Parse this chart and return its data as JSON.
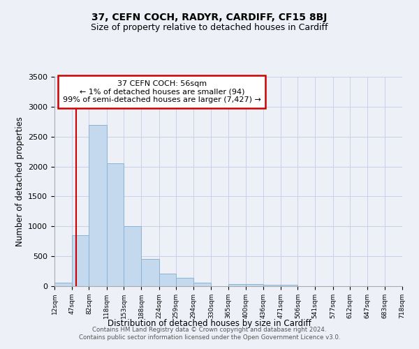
{
  "title": "37, CEFN COCH, RADYR, CARDIFF, CF15 8BJ",
  "subtitle": "Size of property relative to detached houses in Cardiff",
  "xlabel": "Distribution of detached houses by size in Cardiff",
  "ylabel": "Number of detached properties",
  "bar_color": "#c5d9ee",
  "bar_edge_color": "#8ab4d4",
  "annotation_box_color": "#ffffff",
  "annotation_box_edge": "#cc0000",
  "annotation_line_color": "#cc0000",
  "footer_line1": "Contains HM Land Registry data © Crown copyright and database right 2024.",
  "footer_line2": "Contains public sector information licensed under the Open Government Licence v3.0.",
  "annotation_text_line1": "37 CEFN COCH: 56sqm",
  "annotation_text_line2": "← 1% of detached houses are smaller (94)",
  "annotation_text_line3": "99% of semi-detached houses are larger (7,427) →",
  "property_line_x": 56,
  "ylim": [
    0,
    3500
  ],
  "yticks": [
    0,
    500,
    1000,
    1500,
    2000,
    2500,
    3000,
    3500
  ],
  "bin_edges": [
    12,
    47,
    82,
    118,
    153,
    188,
    224,
    259,
    294,
    330,
    365,
    400,
    436,
    471,
    506,
    541,
    577,
    612,
    647,
    683,
    718
  ],
  "bar_heights": [
    60,
    850,
    2700,
    2050,
    1000,
    455,
    205,
    145,
    55,
    0,
    35,
    30,
    25,
    20,
    0,
    0,
    0,
    0,
    0,
    0
  ],
  "background_color": "#eef0f8",
  "grid_color": "#c8cfe8",
  "title_fontsize": 10,
  "subtitle_fontsize": 9
}
